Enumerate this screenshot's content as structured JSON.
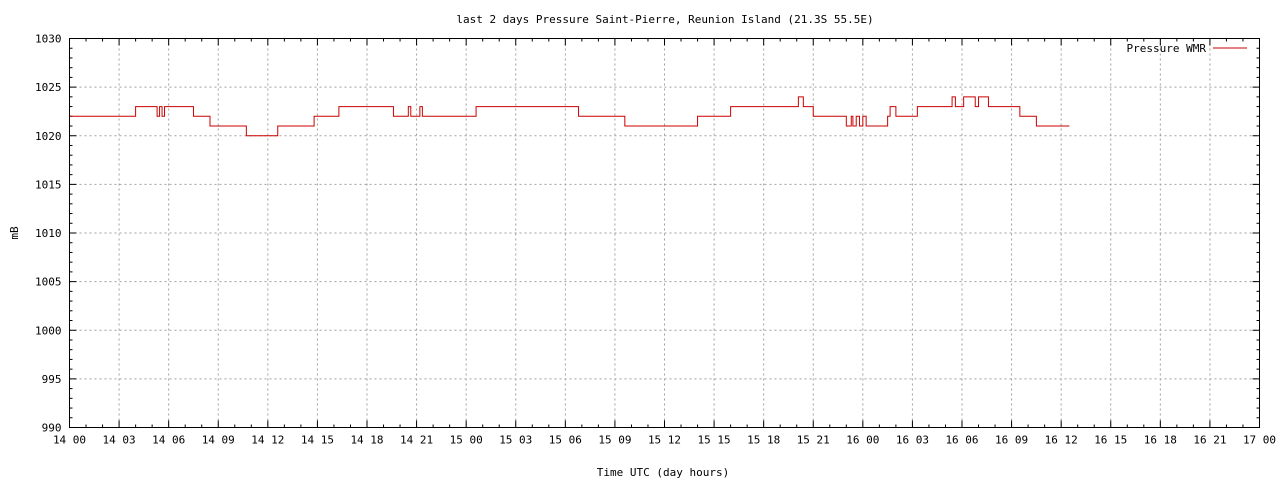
{
  "chart_data": {
    "type": "line",
    "title": "last 2 days Pressure Saint-Pierre, Reunion Island (21.3S 55.5E)",
    "xlabel": "Time UTC (day hours)",
    "ylabel": "mB",
    "xlim": [
      0,
      72
    ],
    "ylim": [
      990,
      1030
    ],
    "y_ticks": [
      990,
      995,
      1000,
      1005,
      1010,
      1015,
      1020,
      1025,
      1030
    ],
    "x_tick_labels": [
      "14 00",
      "14 03",
      "14 06",
      "14 09",
      "14 12",
      "14 15",
      "14 18",
      "14 21",
      "15 00",
      "15 03",
      "15 06",
      "15 09",
      "15 12",
      "15 15",
      "15 18",
      "15 21",
      "16 00",
      "16 03",
      "16 06",
      "16 09",
      "16 12",
      "16 15",
      "16 18",
      "16 21",
      "17 00"
    ],
    "grid": true,
    "legend_position": "top-right",
    "series": [
      {
        "name": "Pressure WMR",
        "color": "#cc0000",
        "x_hours": [
          0,
          4.0,
          5.3,
          5.45,
          5.6,
          5.75,
          5.9,
          6.0,
          7.5,
          8.5,
          10.7,
          12.6,
          14.8,
          16.3,
          19.6,
          20.5,
          20.65,
          20.8,
          21.2,
          21.35,
          21.5,
          24.6,
          30.8,
          33.6,
          38.0,
          40.0,
          44.1,
          44.4,
          45.0,
          47.0,
          47.3,
          47.4,
          47.6,
          47.8,
          48.0,
          48.2,
          49.5,
          49.65,
          50.0,
          51.3,
          53.4,
          53.6,
          54.1,
          54.8,
          55.0,
          55.6,
          57.5,
          58.5
        ],
        "values": [
          1022,
          1023,
          1022,
          1023,
          1022,
          1023,
          1023,
          1023,
          1022,
          1021,
          1020,
          1021,
          1022,
          1023,
          1022,
          1023,
          1022,
          1022,
          1023,
          1022,
          1022,
          1023,
          1022,
          1021,
          1022,
          1023,
          1024,
          1023,
          1022,
          1021,
          1022,
          1021,
          1022,
          1021,
          1022,
          1021,
          1022,
          1023,
          1022,
          1023,
          1024,
          1023,
          1024,
          1023,
          1024,
          1023,
          1022,
          1021
        ],
        "end_x_hours": 60.5
      }
    ]
  }
}
